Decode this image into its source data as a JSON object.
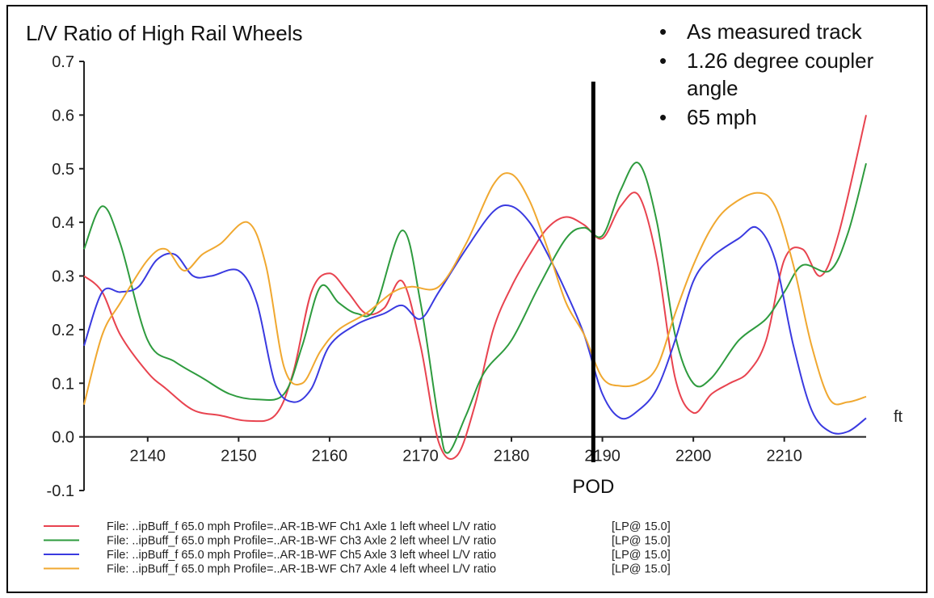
{
  "chart_data": {
    "type": "line",
    "title": "L/V Ratio of High Rail Wheels",
    "xunit": "ft",
    "ylim": [
      -0.1,
      0.7
    ],
    "xlim": [
      2133,
      2219
    ],
    "x_ticks": [
      "2140",
      "2150",
      "2160",
      "2170",
      "2180",
      "2190",
      "2200",
      "2210"
    ],
    "y_ticks": [
      "0.7",
      "0.6",
      "0.5",
      "0.4",
      "0.3",
      "0.2",
      "0.1",
      "0.0",
      "-0.1"
    ],
    "bullets": [
      "As measured track",
      "1.26 degree coupler",
      "angle",
      "65 mph"
    ],
    "marker": {
      "label": "POD",
      "x": 2189
    },
    "series": [
      {
        "name": "File: ..ipBuff_f 65.0 mph Profile=..AR-1B-WF Ch1 Axle 1 left wheel L/V ratio",
        "lp": "[LP@ 15.0]",
        "color": "#e8434f",
        "points": [
          [
            2133,
            0.3
          ],
          [
            2135,
            0.27
          ],
          [
            2137,
            0.19
          ],
          [
            2140,
            0.12
          ],
          [
            2142,
            0.09
          ],
          [
            2145,
            0.05
          ],
          [
            2148,
            0.04
          ],
          [
            2151,
            0.03
          ],
          [
            2154,
            0.04
          ],
          [
            2156,
            0.12
          ],
          [
            2158,
            0.27
          ],
          [
            2160,
            0.305
          ],
          [
            2162,
            0.27
          ],
          [
            2164,
            0.23
          ],
          [
            2166,
            0.24
          ],
          [
            2168,
            0.29
          ],
          [
            2170,
            0.17
          ],
          [
            2172,
            -0.01
          ],
          [
            2174,
            -0.035
          ],
          [
            2176,
            0.06
          ],
          [
            2178,
            0.2
          ],
          [
            2180,
            0.28
          ],
          [
            2182,
            0.34
          ],
          [
            2184,
            0.39
          ],
          [
            2186,
            0.41
          ],
          [
            2188,
            0.395
          ],
          [
            2190,
            0.37
          ],
          [
            2192,
            0.43
          ],
          [
            2194,
            0.45
          ],
          [
            2196,
            0.33
          ],
          [
            2198,
            0.11
          ],
          [
            2200,
            0.045
          ],
          [
            2202,
            0.08
          ],
          [
            2204,
            0.1
          ],
          [
            2206,
            0.12
          ],
          [
            2208,
            0.18
          ],
          [
            2210,
            0.33
          ],
          [
            2212,
            0.35
          ],
          [
            2214,
            0.3
          ],
          [
            2216,
            0.38
          ],
          [
            2219,
            0.6
          ]
        ]
      },
      {
        "name": "File: ..ipBuff_f 65.0 mph Profile=..AR-1B-WF Ch3 Axle 2 left wheel L/V ratio",
        "lp": "[LP@ 15.0]",
        "color": "#2e9b3e",
        "points": [
          [
            2133,
            0.35
          ],
          [
            2135,
            0.43
          ],
          [
            2137,
            0.36
          ],
          [
            2140,
            0.18
          ],
          [
            2143,
            0.14
          ],
          [
            2146,
            0.11
          ],
          [
            2149,
            0.08
          ],
          [
            2152,
            0.07
          ],
          [
            2155,
            0.08
          ],
          [
            2157,
            0.17
          ],
          [
            2159,
            0.28
          ],
          [
            2161,
            0.25
          ],
          [
            2163,
            0.23
          ],
          [
            2165,
            0.24
          ],
          [
            2168,
            0.385
          ],
          [
            2170,
            0.25
          ],
          [
            2172,
            0.03
          ],
          [
            2173,
            -0.03
          ],
          [
            2175,
            0.04
          ],
          [
            2177,
            0.12
          ],
          [
            2180,
            0.18
          ],
          [
            2183,
            0.28
          ],
          [
            2186,
            0.37
          ],
          [
            2188,
            0.39
          ],
          [
            2190,
            0.375
          ],
          [
            2192,
            0.46
          ],
          [
            2194,
            0.51
          ],
          [
            2196,
            0.4
          ],
          [
            2198,
            0.19
          ],
          [
            2200,
            0.1
          ],
          [
            2202,
            0.11
          ],
          [
            2205,
            0.18
          ],
          [
            2208,
            0.22
          ],
          [
            2210,
            0.27
          ],
          [
            2212,
            0.32
          ],
          [
            2215,
            0.31
          ],
          [
            2217,
            0.38
          ],
          [
            2219,
            0.51
          ]
        ]
      },
      {
        "name": "File: ..ipBuff_f 65.0 mph Profile=..AR-1B-WF Ch5 Axle 3 left wheel L/V ratio",
        "lp": "[LP@ 15.0]",
        "color": "#3a3ae0",
        "points": [
          [
            2133,
            0.17
          ],
          [
            2135,
            0.27
          ],
          [
            2137,
            0.27
          ],
          [
            2139,
            0.28
          ],
          [
            2141,
            0.33
          ],
          [
            2143,
            0.34
          ],
          [
            2145,
            0.3
          ],
          [
            2147,
            0.3
          ],
          [
            2150,
            0.31
          ],
          [
            2152,
            0.25
          ],
          [
            2154,
            0.1
          ],
          [
            2156,
            0.065
          ],
          [
            2158,
            0.09
          ],
          [
            2160,
            0.17
          ],
          [
            2163,
            0.21
          ],
          [
            2166,
            0.23
          ],
          [
            2168,
            0.245
          ],
          [
            2170,
            0.22
          ],
          [
            2172,
            0.27
          ],
          [
            2175,
            0.35
          ],
          [
            2178,
            0.42
          ],
          [
            2180,
            0.43
          ],
          [
            2182,
            0.4
          ],
          [
            2184,
            0.34
          ],
          [
            2186,
            0.27
          ],
          [
            2188,
            0.19
          ],
          [
            2190,
            0.08
          ],
          [
            2192,
            0.035
          ],
          [
            2194,
            0.05
          ],
          [
            2196,
            0.09
          ],
          [
            2198,
            0.18
          ],
          [
            2200,
            0.29
          ],
          [
            2202,
            0.335
          ],
          [
            2205,
            0.37
          ],
          [
            2207,
            0.39
          ],
          [
            2209,
            0.33
          ],
          [
            2211,
            0.17
          ],
          [
            2213,
            0.05
          ],
          [
            2215,
            0.01
          ],
          [
            2217,
            0.01
          ],
          [
            2219,
            0.035
          ]
        ]
      },
      {
        "name": "File: ..ipBuff_f 65.0 mph Profile=..AR-1B-WF Ch7 Axle 4 left wheel L/V ratio",
        "lp": "[LP@ 15.0]",
        "color": "#f0a830",
        "points": [
          [
            2133,
            0.06
          ],
          [
            2135,
            0.19
          ],
          [
            2137,
            0.25
          ],
          [
            2140,
            0.33
          ],
          [
            2142,
            0.35
          ],
          [
            2144,
            0.31
          ],
          [
            2146,
            0.34
          ],
          [
            2148,
            0.36
          ],
          [
            2151,
            0.4
          ],
          [
            2153,
            0.32
          ],
          [
            2155,
            0.13
          ],
          [
            2157,
            0.1
          ],
          [
            2159,
            0.16
          ],
          [
            2161,
            0.2
          ],
          [
            2164,
            0.23
          ],
          [
            2167,
            0.27
          ],
          [
            2169,
            0.28
          ],
          [
            2172,
            0.28
          ],
          [
            2175,
            0.36
          ],
          [
            2178,
            0.47
          ],
          [
            2180,
            0.49
          ],
          [
            2182,
            0.44
          ],
          [
            2184,
            0.35
          ],
          [
            2186,
            0.25
          ],
          [
            2188,
            0.19
          ],
          [
            2190,
            0.11
          ],
          [
            2192,
            0.095
          ],
          [
            2194,
            0.1
          ],
          [
            2196,
            0.13
          ],
          [
            2198,
            0.23
          ],
          [
            2200,
            0.32
          ],
          [
            2202,
            0.39
          ],
          [
            2204,
            0.43
          ],
          [
            2207,
            0.455
          ],
          [
            2209,
            0.43
          ],
          [
            2211,
            0.32
          ],
          [
            2213,
            0.17
          ],
          [
            2215,
            0.07
          ],
          [
            2217,
            0.065
          ],
          [
            2219,
            0.075
          ]
        ]
      }
    ]
  }
}
